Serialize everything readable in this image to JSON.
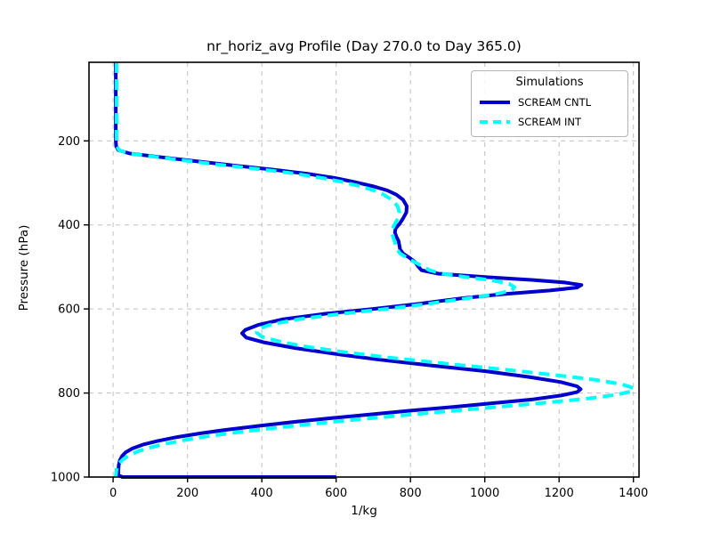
{
  "figure": {
    "title": "nr_horiz_avg Profile (Day 270.0 to Day 365.0)",
    "xlabel": "1/kg",
    "ylabel": "Pressure (hPa)",
    "legend": {
      "title": "Simulations",
      "entries": [
        {
          "label": "SCREAM CNTL",
          "color": "#0000cd",
          "style": "solid"
        },
        {
          "label": "SCREAM INT",
          "color": "#00ffff",
          "style": "dashed"
        }
      ]
    }
  },
  "chart_data": {
    "type": "line",
    "title": "nr_horiz_avg Profile (Day 270.0 to Day 365.0)",
    "xlabel": "1/kg",
    "ylabel": "Pressure (hPa)",
    "note": "Vertical profile: x = value (1/kg), y = pressure (hPa), y-axis inverted (1000 at bottom)",
    "xlim": [
      -65,
      1415
    ],
    "ylim": [
      1000,
      13
    ],
    "x_ticks": [
      0,
      200,
      400,
      600,
      800,
      1000,
      1200,
      1400
    ],
    "y_ticks": [
      200,
      400,
      600,
      800,
      1000
    ],
    "grid": true,
    "grid_style": "dashed",
    "grid_color": "#c0c0c0",
    "legend_position": "upper right",
    "series": [
      {
        "name": "SCREAM CNTL",
        "color": "#0000cd",
        "linestyle": "solid",
        "linewidth": 4,
        "points_pressure_value": [
          [
            13,
            7
          ],
          [
            150,
            7
          ],
          [
            200,
            7
          ],
          [
            213,
            8
          ],
          [
            222,
            14
          ],
          [
            230,
            45
          ],
          [
            238,
            120
          ],
          [
            248,
            220
          ],
          [
            258,
            320
          ],
          [
            268,
            425
          ],
          [
            278,
            520
          ],
          [
            288,
            595
          ],
          [
            298,
            650
          ],
          [
            308,
            700
          ],
          [
            318,
            738
          ],
          [
            328,
            762
          ],
          [
            340,
            780
          ],
          [
            355,
            790
          ],
          [
            370,
            789
          ],
          [
            385,
            780
          ],
          [
            398,
            770
          ],
          [
            408,
            760
          ],
          [
            418,
            758
          ],
          [
            428,
            762
          ],
          [
            438,
            768
          ],
          [
            448,
            770
          ],
          [
            458,
            772
          ],
          [
            468,
            780
          ],
          [
            478,
            797
          ],
          [
            488,
            812
          ],
          [
            498,
            820
          ],
          [
            508,
            830
          ],
          [
            516,
            875
          ],
          [
            524,
            1000
          ],
          [
            531,
            1130
          ],
          [
            537,
            1215
          ],
          [
            543,
            1260
          ],
          [
            549,
            1248
          ],
          [
            556,
            1175
          ],
          [
            565,
            1045
          ],
          [
            575,
            935
          ],
          [
            588,
            820
          ],
          [
            600,
            700
          ],
          [
            612,
            565
          ],
          [
            625,
            455
          ],
          [
            638,
            390
          ],
          [
            650,
            355
          ],
          [
            658,
            347
          ],
          [
            668,
            358
          ],
          [
            680,
            408
          ],
          [
            693,
            490
          ],
          [
            706,
            590
          ],
          [
            720,
            710
          ],
          [
            734,
            850
          ],
          [
            748,
            1000
          ],
          [
            762,
            1120
          ],
          [
            774,
            1205
          ],
          [
            784,
            1248
          ],
          [
            791,
            1258
          ],
          [
            798,
            1248
          ],
          [
            806,
            1205
          ],
          [
            815,
            1130
          ],
          [
            824,
            1025
          ],
          [
            833,
            915
          ],
          [
            842,
            800
          ],
          [
            851,
            690
          ],
          [
            860,
            585
          ],
          [
            869,
            485
          ],
          [
            878,
            395
          ],
          [
            887,
            310
          ],
          [
            896,
            235
          ],
          [
            905,
            172
          ],
          [
            914,
            120
          ],
          [
            923,
            80
          ],
          [
            932,
            52
          ],
          [
            941,
            34
          ],
          [
            950,
            24
          ],
          [
            960,
            18
          ],
          [
            972,
            15
          ],
          [
            985,
            14
          ],
          [
            996,
            14
          ],
          [
            1000,
            25
          ],
          [
            1000,
            600
          ]
        ]
      },
      {
        "name": "SCREAM INT",
        "color": "#00ffff",
        "linestyle": "dashed",
        "linewidth": 4,
        "points_pressure_value": [
          [
            13,
            9
          ],
          [
            150,
            9
          ],
          [
            200,
            9
          ],
          [
            213,
            10
          ],
          [
            222,
            16
          ],
          [
            230,
            42
          ],
          [
            238,
            112
          ],
          [
            248,
            205
          ],
          [
            258,
            300
          ],
          [
            268,
            400
          ],
          [
            278,
            490
          ],
          [
            288,
            560
          ],
          [
            298,
            618
          ],
          [
            308,
            665
          ],
          [
            318,
            702
          ],
          [
            328,
            728
          ],
          [
            340,
            750
          ],
          [
            355,
            765
          ],
          [
            370,
            770
          ],
          [
            385,
            766
          ],
          [
            398,
            758
          ],
          [
            408,
            752
          ],
          [
            418,
            750
          ],
          [
            428,
            753
          ],
          [
            438,
            757
          ],
          [
            448,
            760
          ],
          [
            458,
            764
          ],
          [
            468,
            772
          ],
          [
            478,
            790
          ],
          [
            488,
            810
          ],
          [
            498,
            832
          ],
          [
            508,
            852
          ],
          [
            516,
            885
          ],
          [
            524,
            950
          ],
          [
            532,
            1020
          ],
          [
            540,
            1065
          ],
          [
            548,
            1080
          ],
          [
            556,
            1072
          ],
          [
            565,
            1028
          ],
          [
            575,
            950
          ],
          [
            588,
            845
          ],
          [
            600,
            735
          ],
          [
            612,
            610
          ],
          [
            625,
            495
          ],
          [
            638,
            420
          ],
          [
            648,
            390
          ],
          [
            656,
            386
          ],
          [
            666,
            400
          ],
          [
            678,
            450
          ],
          [
            690,
            520
          ],
          [
            703,
            625
          ],
          [
            717,
            755
          ],
          [
            731,
            905
          ],
          [
            745,
            1060
          ],
          [
            758,
            1195
          ],
          [
            769,
            1300
          ],
          [
            779,
            1368
          ],
          [
            788,
            1400
          ],
          [
            796,
            1395
          ],
          [
            804,
            1355
          ],
          [
            813,
            1278
          ],
          [
            822,
            1175
          ],
          [
            831,
            1062
          ],
          [
            840,
            945
          ],
          [
            849,
            830
          ],
          [
            858,
            718
          ],
          [
            867,
            610
          ],
          [
            876,
            508
          ],
          [
            885,
            415
          ],
          [
            894,
            330
          ],
          [
            903,
            255
          ],
          [
            912,
            192
          ],
          [
            921,
            140
          ],
          [
            930,
            98
          ],
          [
            939,
            66
          ],
          [
            948,
            44
          ],
          [
            957,
            28
          ],
          [
            967,
            16
          ],
          [
            978,
            10
          ],
          [
            990,
            8
          ],
          [
            1000,
            7
          ]
        ]
      }
    ]
  }
}
